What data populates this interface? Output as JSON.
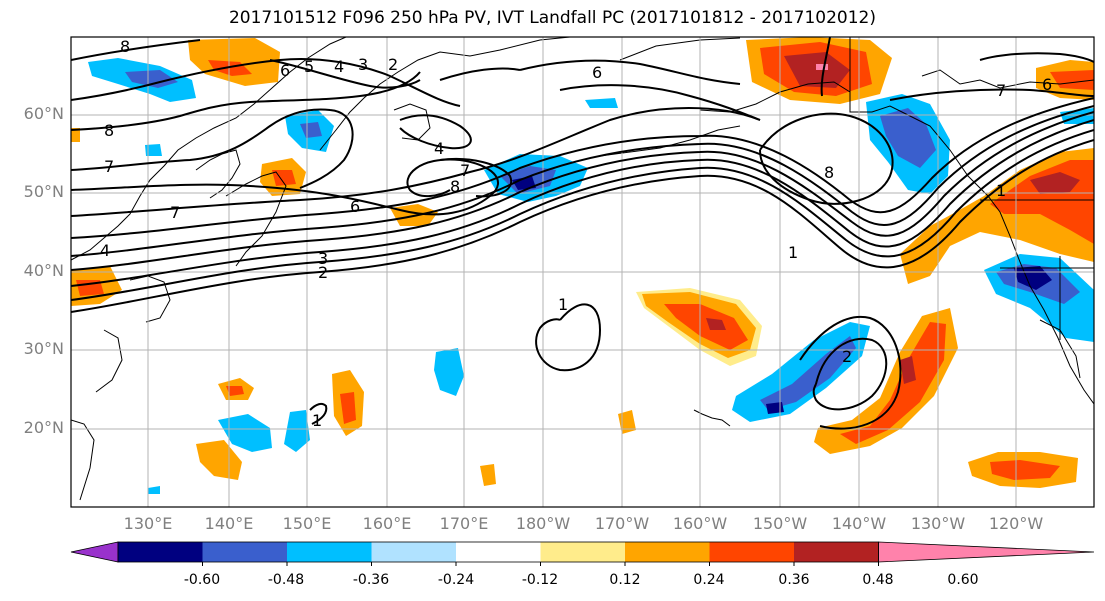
{
  "title": "2017101512 F096 250 hPa PV, IVT Landfall PC (2017101812 - 2017102012)",
  "lat_labels": [
    "60°N",
    "50°N",
    "40°N",
    "30°N",
    "20°N"
  ],
  "lon_labels": [
    "130°E",
    "140°E",
    "150°E",
    "160°E",
    "170°E",
    "180°W",
    "170°W",
    "160°W",
    "150°W",
    "140°W",
    "130°W",
    "120°W"
  ],
  "contour_labels": [
    "8",
    "6",
    "5",
    "4",
    "3",
    "2",
    "8",
    "7",
    "4",
    "4",
    "7",
    "8",
    "6",
    "3",
    "2",
    "1",
    "7",
    "6",
    "8",
    "1",
    "2",
    "1",
    "1",
    "7",
    "6"
  ],
  "colorbar": {
    "colors": [
      "#9932cc",
      "#000080",
      "#3a5fcd",
      "#00bfff",
      "#b0e2ff",
      "#ffffff",
      "#ffec8b",
      "#ffa500",
      "#ff4500",
      "#b22222",
      "#ff82ab"
    ],
    "ticks": [
      "-0.60",
      "-0.48",
      "-0.36",
      "-0.24",
      "-0.12",
      "0.12",
      "0.24",
      "0.36",
      "0.48",
      "0.60"
    ]
  },
  "colors": {
    "grid": "#b3b3b3",
    "contour": "#000000",
    "tick_label": "#808080"
  }
}
